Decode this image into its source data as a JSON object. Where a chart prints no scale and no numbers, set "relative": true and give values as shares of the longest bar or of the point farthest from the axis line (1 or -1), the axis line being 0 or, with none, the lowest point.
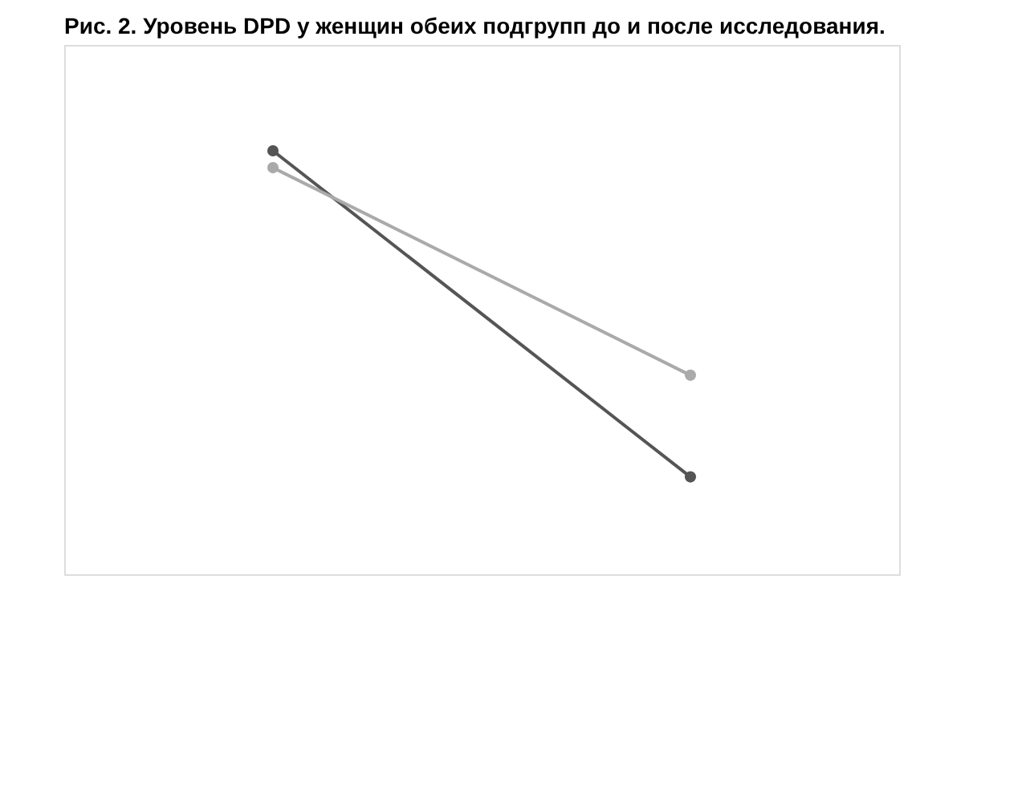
{
  "chart_data": {
    "type": "line",
    "title": "Рис. 2. Уровень DPD у женщин обеих подгрупп до и после исследования.",
    "categories": [
      null,
      null
    ],
    "relative": true,
    "marker": "circle",
    "line_style": "solid",
    "grid": false,
    "series": [
      {
        "color": "#555555",
        "values": [
          1,
          0.23
        ]
      },
      {
        "color": "#aaaaaa",
        "values": [
          0.96,
          0.47
        ]
      }
    ]
  }
}
